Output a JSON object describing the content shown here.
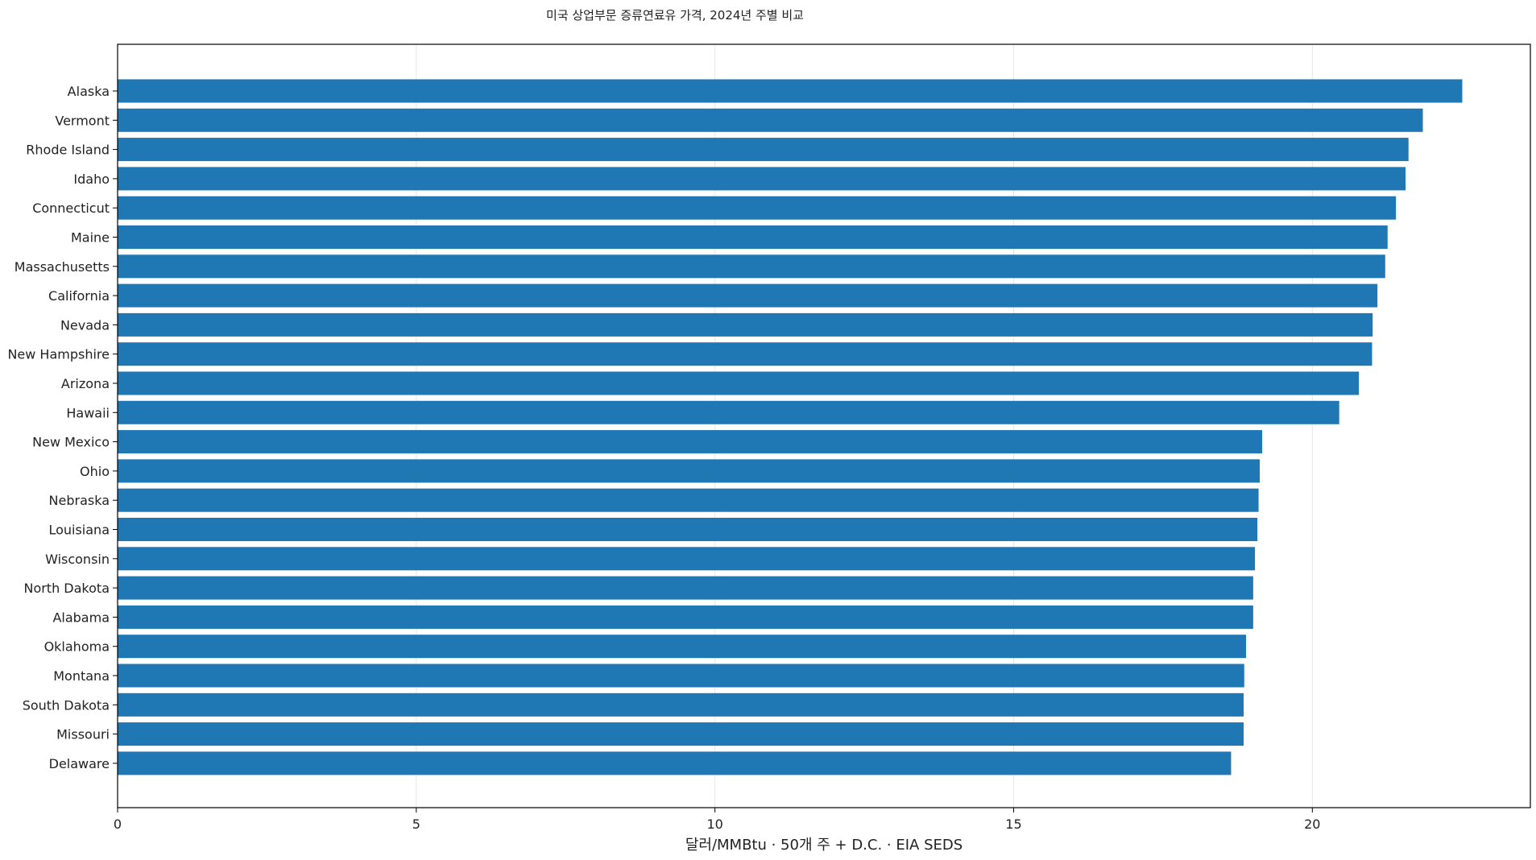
{
  "chart_data": {
    "type": "bar",
    "orientation": "horizontal",
    "title": "미국 상업부문 증류연료유 가격, 2024년 주별 비교",
    "xlabel": "달러/MMBtu · 50개 주 + D.C. · EIA SEDS",
    "ylabel": "",
    "xlim": [
      0,
      23.65
    ],
    "xticks": [
      0,
      5,
      10,
      15,
      20
    ],
    "grid": "vertical",
    "bar_color": "#1f77b4",
    "categories": [
      "Alaska",
      "Vermont",
      "Rhode Island",
      "Idaho",
      "Connecticut",
      "Maine",
      "Massachusetts",
      "California",
      "Nevada",
      "New Hampshire",
      "Arizona",
      "Hawaii",
      "New Mexico",
      "Ohio",
      "Nebraska",
      "Louisiana",
      "Wisconsin",
      "North Dakota",
      "Alabama",
      "Oklahoma",
      "Montana",
      "South Dakota",
      "Missouri",
      "Delaware"
    ],
    "values": [
      22.51,
      21.85,
      21.61,
      21.56,
      21.4,
      21.26,
      21.22,
      21.09,
      21.01,
      21.0,
      20.78,
      20.45,
      19.16,
      19.12,
      19.1,
      19.08,
      19.04,
      19.01,
      19.01,
      18.89,
      18.86,
      18.85,
      18.85,
      18.64
    ]
  }
}
